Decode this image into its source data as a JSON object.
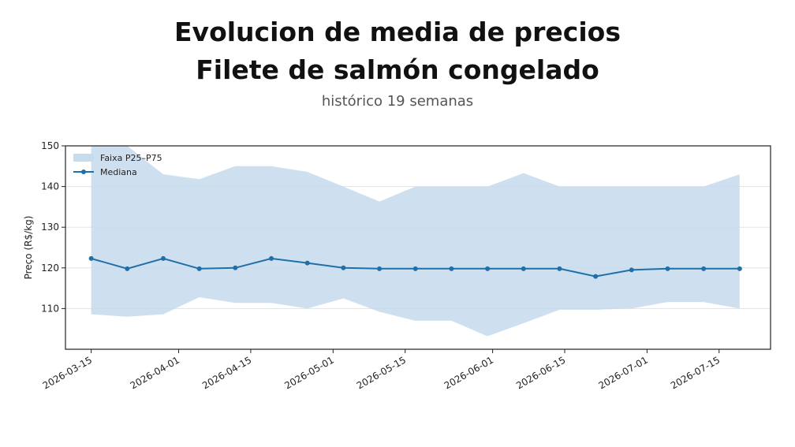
{
  "header": {
    "title_line1": "Evolucion de media de precios",
    "title_line2": "Filete de salmón congelado",
    "subtitle": "histórico 19 semanas"
  },
  "chart_data": {
    "type": "line",
    "ylabel": "Preço (R$/kg)",
    "xlabel": "",
    "ylim": [
      100,
      150
    ],
    "xlim": [
      "2026-03-10",
      "2026-07-25"
    ],
    "y_ticks": [
      110,
      120,
      130,
      140,
      150
    ],
    "x_ticks": [
      "2026-03-15",
      "2026-04-01",
      "2026-04-15",
      "2026-05-01",
      "2026-05-15",
      "2026-06-01",
      "2026-06-15",
      "2026-07-01",
      "2026-07-15"
    ],
    "grid": true,
    "legend_position": "top-left",
    "x": [
      "2026-03-15",
      "2026-03-22",
      "2026-03-29",
      "2026-04-05",
      "2026-04-12",
      "2026-04-19",
      "2026-04-26",
      "2026-05-03",
      "2026-05-10",
      "2026-05-17",
      "2026-05-24",
      "2026-05-31",
      "2026-06-07",
      "2026-06-14",
      "2026-06-21",
      "2026-06-28",
      "2026-07-05",
      "2026-07-12",
      "2026-07-19"
    ],
    "series": [
      {
        "name": "Mediana",
        "color": "#1f6fa8",
        "values": [
          122.3,
          119.8,
          122.3,
          119.8,
          120.0,
          122.3,
          121.2,
          120.0,
          119.8,
          119.8,
          119.8,
          119.8,
          119.8,
          119.8,
          117.9,
          119.5,
          119.8,
          119.8,
          119.8
        ]
      }
    ],
    "band": {
      "name": "Faixa P25–P75",
      "color": "#c6dbec",
      "p75": [
        150.0,
        150.0,
        143.0,
        141.8,
        145.0,
        145.0,
        143.6,
        140.0,
        136.3,
        140.0,
        140.0,
        140.0,
        143.3,
        140.0,
        140.0,
        140.0,
        140.0,
        140.0,
        143.0
      ],
      "p25": [
        108.6,
        108.0,
        108.6,
        112.8,
        111.4,
        111.4,
        110.0,
        112.5,
        109.2,
        107.0,
        107.0,
        103.2,
        106.4,
        109.7,
        109.7,
        110.0,
        111.6,
        111.6,
        110.0
      ]
    }
  }
}
